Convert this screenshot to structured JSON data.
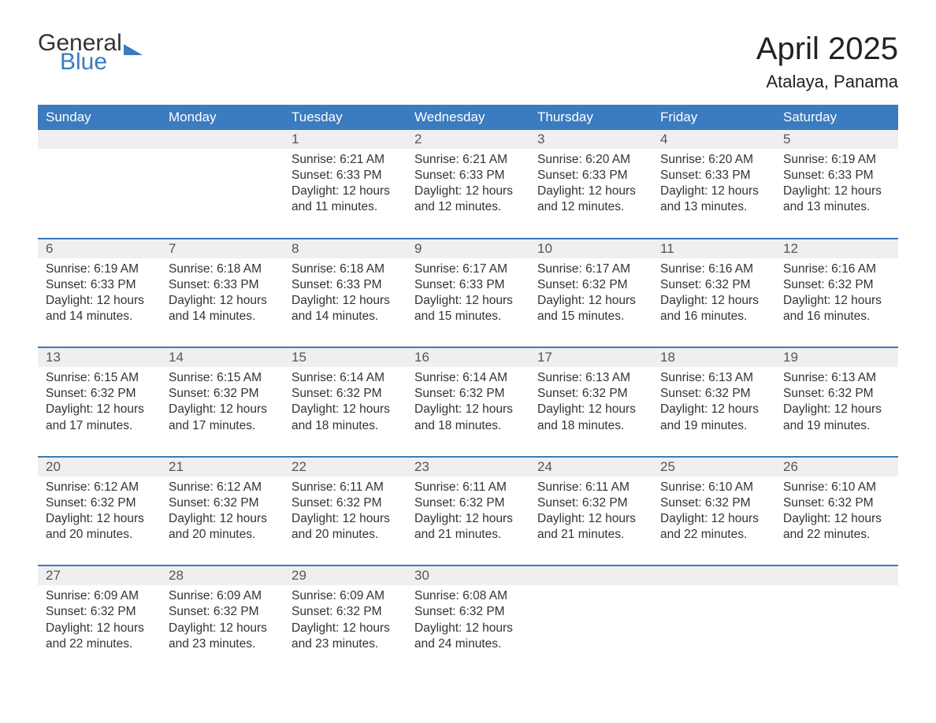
{
  "logo": {
    "part1": "General",
    "part2": "Blue"
  },
  "title": "April 2025",
  "location": "Atalaya, Panama",
  "colors": {
    "header_bg": "#3b7bbf",
    "header_text": "#ffffff",
    "daynum_bg": "#efefef",
    "border_top": "#3b7bbf",
    "body_text": "#333333",
    "page_bg": "#ffffff"
  },
  "days_of_week": [
    "Sunday",
    "Monday",
    "Tuesday",
    "Wednesday",
    "Thursday",
    "Friday",
    "Saturday"
  ],
  "weeks": [
    [
      null,
      null,
      {
        "n": "1",
        "sunrise": "Sunrise: 6:21 AM",
        "sunset": "Sunset: 6:33 PM",
        "day1": "Daylight: 12 hours",
        "day2": "and 11 minutes."
      },
      {
        "n": "2",
        "sunrise": "Sunrise: 6:21 AM",
        "sunset": "Sunset: 6:33 PM",
        "day1": "Daylight: 12 hours",
        "day2": "and 12 minutes."
      },
      {
        "n": "3",
        "sunrise": "Sunrise: 6:20 AM",
        "sunset": "Sunset: 6:33 PM",
        "day1": "Daylight: 12 hours",
        "day2": "and 12 minutes."
      },
      {
        "n": "4",
        "sunrise": "Sunrise: 6:20 AM",
        "sunset": "Sunset: 6:33 PM",
        "day1": "Daylight: 12 hours",
        "day2": "and 13 minutes."
      },
      {
        "n": "5",
        "sunrise": "Sunrise: 6:19 AM",
        "sunset": "Sunset: 6:33 PM",
        "day1": "Daylight: 12 hours",
        "day2": "and 13 minutes."
      }
    ],
    [
      {
        "n": "6",
        "sunrise": "Sunrise: 6:19 AM",
        "sunset": "Sunset: 6:33 PM",
        "day1": "Daylight: 12 hours",
        "day2": "and 14 minutes."
      },
      {
        "n": "7",
        "sunrise": "Sunrise: 6:18 AM",
        "sunset": "Sunset: 6:33 PM",
        "day1": "Daylight: 12 hours",
        "day2": "and 14 minutes."
      },
      {
        "n": "8",
        "sunrise": "Sunrise: 6:18 AM",
        "sunset": "Sunset: 6:33 PM",
        "day1": "Daylight: 12 hours",
        "day2": "and 14 minutes."
      },
      {
        "n": "9",
        "sunrise": "Sunrise: 6:17 AM",
        "sunset": "Sunset: 6:33 PM",
        "day1": "Daylight: 12 hours",
        "day2": "and 15 minutes."
      },
      {
        "n": "10",
        "sunrise": "Sunrise: 6:17 AM",
        "sunset": "Sunset: 6:32 PM",
        "day1": "Daylight: 12 hours",
        "day2": "and 15 minutes."
      },
      {
        "n": "11",
        "sunrise": "Sunrise: 6:16 AM",
        "sunset": "Sunset: 6:32 PM",
        "day1": "Daylight: 12 hours",
        "day2": "and 16 minutes."
      },
      {
        "n": "12",
        "sunrise": "Sunrise: 6:16 AM",
        "sunset": "Sunset: 6:32 PM",
        "day1": "Daylight: 12 hours",
        "day2": "and 16 minutes."
      }
    ],
    [
      {
        "n": "13",
        "sunrise": "Sunrise: 6:15 AM",
        "sunset": "Sunset: 6:32 PM",
        "day1": "Daylight: 12 hours",
        "day2": "and 17 minutes."
      },
      {
        "n": "14",
        "sunrise": "Sunrise: 6:15 AM",
        "sunset": "Sunset: 6:32 PM",
        "day1": "Daylight: 12 hours",
        "day2": "and 17 minutes."
      },
      {
        "n": "15",
        "sunrise": "Sunrise: 6:14 AM",
        "sunset": "Sunset: 6:32 PM",
        "day1": "Daylight: 12 hours",
        "day2": "and 18 minutes."
      },
      {
        "n": "16",
        "sunrise": "Sunrise: 6:14 AM",
        "sunset": "Sunset: 6:32 PM",
        "day1": "Daylight: 12 hours",
        "day2": "and 18 minutes."
      },
      {
        "n": "17",
        "sunrise": "Sunrise: 6:13 AM",
        "sunset": "Sunset: 6:32 PM",
        "day1": "Daylight: 12 hours",
        "day2": "and 18 minutes."
      },
      {
        "n": "18",
        "sunrise": "Sunrise: 6:13 AM",
        "sunset": "Sunset: 6:32 PM",
        "day1": "Daylight: 12 hours",
        "day2": "and 19 minutes."
      },
      {
        "n": "19",
        "sunrise": "Sunrise: 6:13 AM",
        "sunset": "Sunset: 6:32 PM",
        "day1": "Daylight: 12 hours",
        "day2": "and 19 minutes."
      }
    ],
    [
      {
        "n": "20",
        "sunrise": "Sunrise: 6:12 AM",
        "sunset": "Sunset: 6:32 PM",
        "day1": "Daylight: 12 hours",
        "day2": "and 20 minutes."
      },
      {
        "n": "21",
        "sunrise": "Sunrise: 6:12 AM",
        "sunset": "Sunset: 6:32 PM",
        "day1": "Daylight: 12 hours",
        "day2": "and 20 minutes."
      },
      {
        "n": "22",
        "sunrise": "Sunrise: 6:11 AM",
        "sunset": "Sunset: 6:32 PM",
        "day1": "Daylight: 12 hours",
        "day2": "and 20 minutes."
      },
      {
        "n": "23",
        "sunrise": "Sunrise: 6:11 AM",
        "sunset": "Sunset: 6:32 PM",
        "day1": "Daylight: 12 hours",
        "day2": "and 21 minutes."
      },
      {
        "n": "24",
        "sunrise": "Sunrise: 6:11 AM",
        "sunset": "Sunset: 6:32 PM",
        "day1": "Daylight: 12 hours",
        "day2": "and 21 minutes."
      },
      {
        "n": "25",
        "sunrise": "Sunrise: 6:10 AM",
        "sunset": "Sunset: 6:32 PM",
        "day1": "Daylight: 12 hours",
        "day2": "and 22 minutes."
      },
      {
        "n": "26",
        "sunrise": "Sunrise: 6:10 AM",
        "sunset": "Sunset: 6:32 PM",
        "day1": "Daylight: 12 hours",
        "day2": "and 22 minutes."
      }
    ],
    [
      {
        "n": "27",
        "sunrise": "Sunrise: 6:09 AM",
        "sunset": "Sunset: 6:32 PM",
        "day1": "Daylight: 12 hours",
        "day2": "and 22 minutes."
      },
      {
        "n": "28",
        "sunrise": "Sunrise: 6:09 AM",
        "sunset": "Sunset: 6:32 PM",
        "day1": "Daylight: 12 hours",
        "day2": "and 23 minutes."
      },
      {
        "n": "29",
        "sunrise": "Sunrise: 6:09 AM",
        "sunset": "Sunset: 6:32 PM",
        "day1": "Daylight: 12 hours",
        "day2": "and 23 minutes."
      },
      {
        "n": "30",
        "sunrise": "Sunrise: 6:08 AM",
        "sunset": "Sunset: 6:32 PM",
        "day1": "Daylight: 12 hours",
        "day2": "and 24 minutes."
      },
      null,
      null,
      null
    ]
  ]
}
